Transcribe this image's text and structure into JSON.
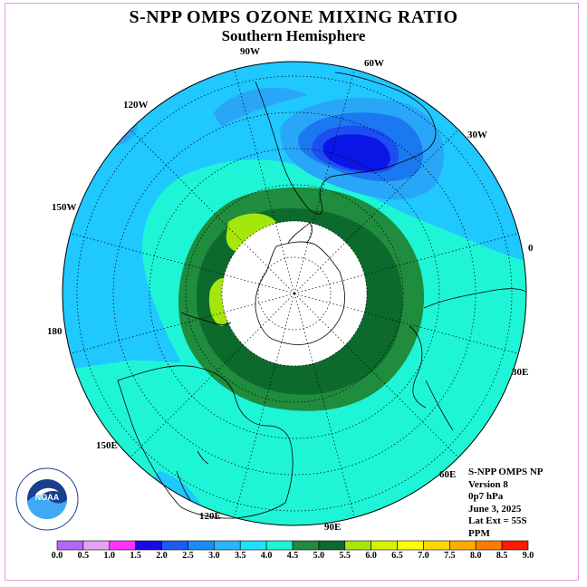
{
  "title": "S-NPP OMPS OZONE MIXING RATIO",
  "subtitle": "Southern Hemisphere",
  "longitude_labels": [
    "90W",
    "60W",
    "30W",
    "0",
    "30E",
    "60E",
    "90E",
    "120E",
    "150E",
    "180",
    "150W",
    "120W"
  ],
  "info": [
    "S-NPP OMPS NP",
    "Version 8",
    "0p7 hPa",
    "June 3, 2025",
    "Lat Ext = 55S",
    "PPM"
  ],
  "logo": {
    "wordmark": "NOAA"
  },
  "colorbar": {
    "ticks": [
      "0.0",
      "0.5",
      "1.0",
      "1.5",
      "2.0",
      "2.5",
      "3.0",
      "3.5",
      "4.0",
      "4.5",
      "5.0",
      "5.5",
      "6.0",
      "6.5",
      "7.0",
      "7.5",
      "8.0",
      "8.5",
      "9.0"
    ],
    "colors": [
      "#b266ff",
      "#e2a3f0",
      "#ff33ff",
      "#1a0ae6",
      "#1a5cf2",
      "#1a8cf5",
      "#2ab4ff",
      "#1fe0ff",
      "#1ef5d6",
      "#1f8c3e",
      "#0d6a2d",
      "#a5e60c",
      "#d6f200",
      "#ffff00",
      "#ffd700",
      "#ffab00",
      "#ff7a00",
      "#ff1a00",
      "#8b5a3c"
    ]
  }
}
